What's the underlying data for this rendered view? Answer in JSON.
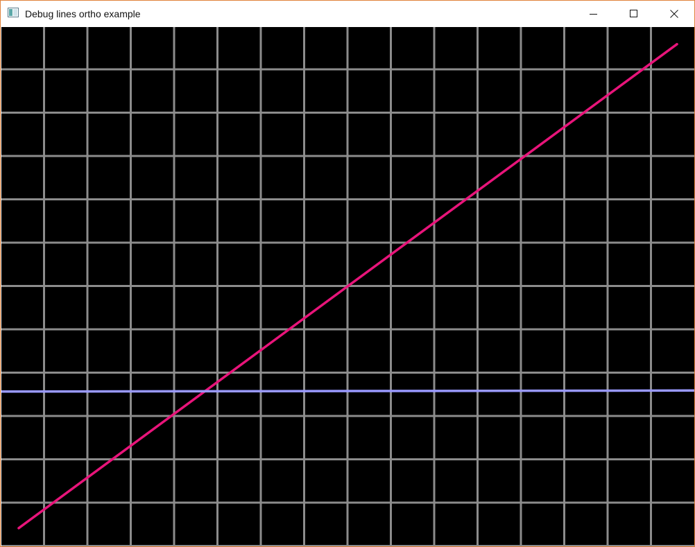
{
  "window": {
    "title": "Debug lines ortho example",
    "border_color": "#e0813a"
  },
  "titlebar": {
    "icon": "app-window-icon",
    "buttons": [
      {
        "name": "minimize-button",
        "icon": "minimize-icon"
      },
      {
        "name": "maximize-button",
        "icon": "maximize-icon"
      },
      {
        "name": "close-button",
        "icon": "close-icon"
      }
    ]
  },
  "viewport": {
    "background": "#000000",
    "grid": {
      "color": "#8c8c8c",
      "vertical_line_count": 16,
      "horizontal_line_count": 12
    },
    "lines": [
      {
        "name": "diagonal-line",
        "color": "#e8147a",
        "from": [
          0.025,
          0.965
        ],
        "to": [
          0.975,
          0.033
        ]
      },
      {
        "name": "horizontal-line",
        "color": "#9999ff",
        "from": [
          0.0,
          0.702
        ],
        "to": [
          1.0,
          0.7
        ]
      }
    ]
  }
}
